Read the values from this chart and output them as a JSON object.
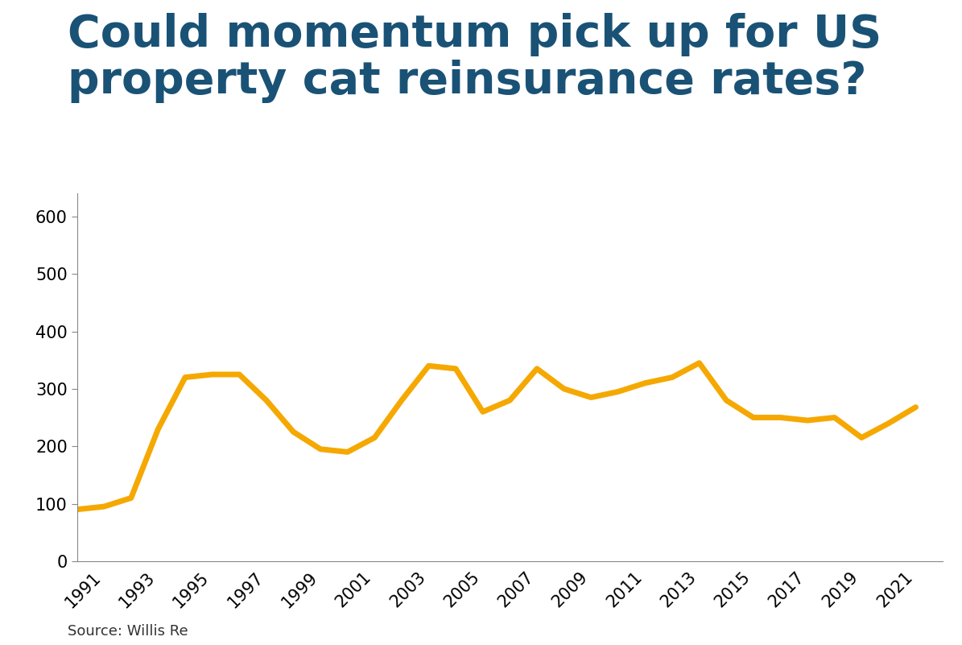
{
  "title_line1": "Could momentum pick up for US",
  "title_line2": "property cat reinsurance rates?",
  "source": "Source: Willis Re",
  "title_color": "#1a5276",
  "line_color": "#F5A800",
  "background_color": "#ffffff",
  "years": [
    1990,
    1991,
    1992,
    1993,
    1994,
    1995,
    1996,
    1997,
    1998,
    1999,
    2000,
    2001,
    2002,
    2003,
    2004,
    2005,
    2006,
    2007,
    2008,
    2009,
    2010,
    2011,
    2012,
    2013,
    2014,
    2015,
    2016,
    2017,
    2018,
    2019,
    2020,
    2021
  ],
  "values": [
    90,
    95,
    110,
    230,
    320,
    325,
    325,
    280,
    225,
    195,
    190,
    215,
    280,
    340,
    335,
    260,
    280,
    335,
    300,
    285,
    295,
    310,
    320,
    345,
    280,
    250,
    250,
    245,
    250,
    215,
    240,
    268
  ],
  "ylim": [
    0,
    640
  ],
  "yticks": [
    0,
    100,
    200,
    300,
    400,
    500,
    600
  ],
  "xtick_years": [
    1991,
    1993,
    1995,
    1997,
    1999,
    2001,
    2003,
    2005,
    2007,
    2009,
    2011,
    2013,
    2015,
    2017,
    2019,
    2021
  ],
  "line_width": 5,
  "title_fontsize": 40,
  "tick_fontsize": 15,
  "source_fontsize": 13
}
